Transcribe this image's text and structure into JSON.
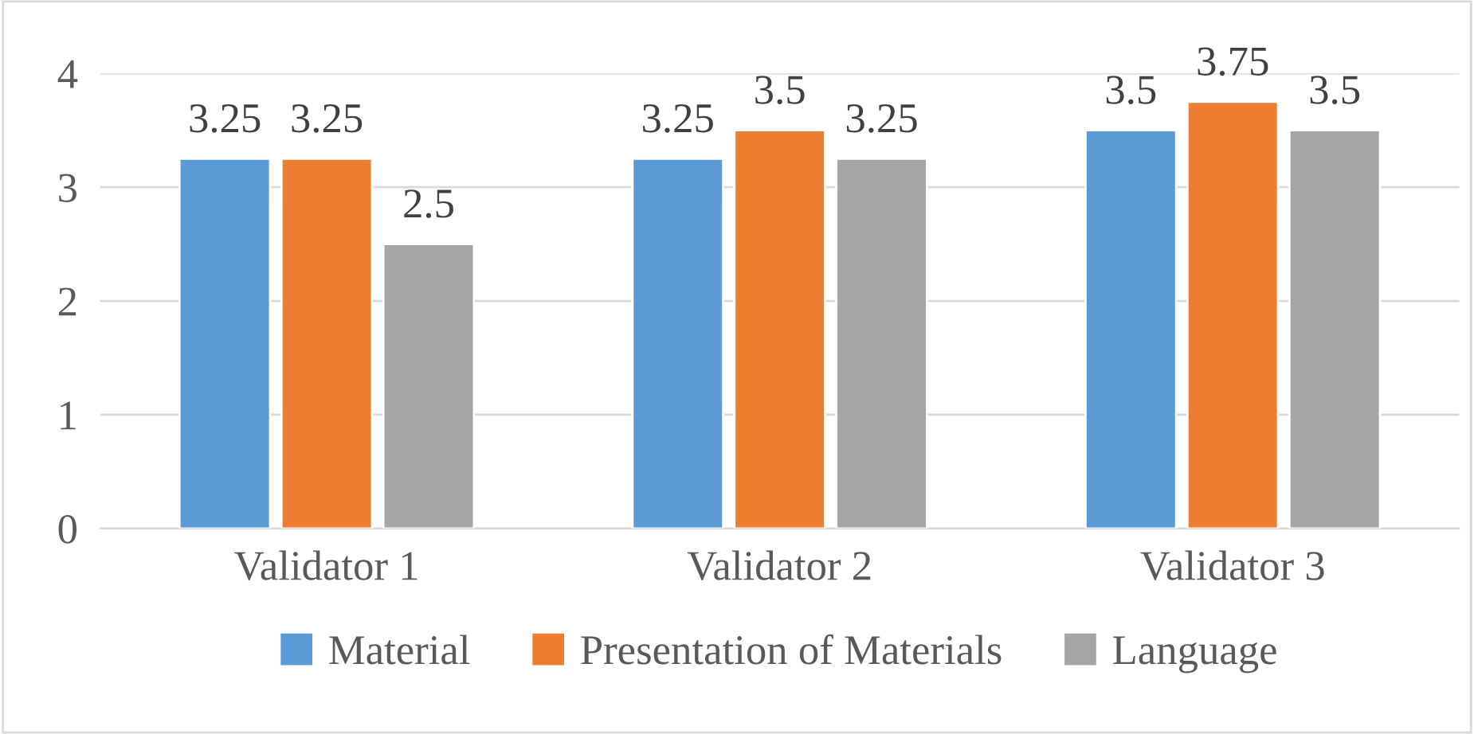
{
  "chart_data": {
    "type": "bar",
    "categories": [
      "Validator 1",
      "Validator 2",
      "Validator 3"
    ],
    "series": [
      {
        "name": "Material",
        "color": "#5b9bd5",
        "values": [
          3.25,
          3.25,
          3.5
        ]
      },
      {
        "name": "Presentation of Materials",
        "color": "#ed7d31",
        "values": [
          3.25,
          3.5,
          3.75
        ]
      },
      {
        "name": "Language",
        "color": "#a5a5a5",
        "values": [
          2.5,
          3.25,
          3.5
        ]
      }
    ],
    "ylim": [
      0,
      4
    ],
    "yticks": [
      0,
      1,
      2,
      3,
      4
    ],
    "grid": "y",
    "legend": "bottom",
    "data_labels": true
  }
}
